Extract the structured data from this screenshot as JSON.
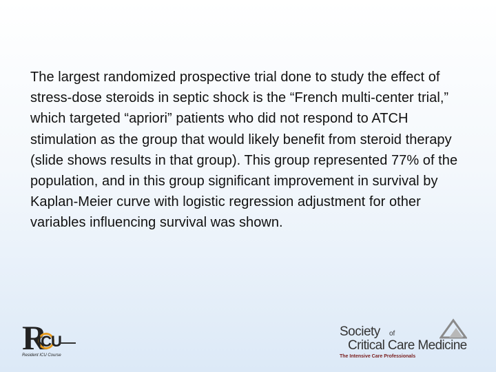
{
  "slide": {
    "body_text": "The largest randomized prospective trial done to study the effect of stress-dose steroids in septic shock is the “French multi-center trial,” which targeted “apriori” patients who did not respond to ATCH stimulation as the group that would likely benefit from steroid therapy (slide shows results in that group).  This group represented 77% of the population, and in this group significant improvement in survival by Kaplan-Meier curve with logistic regression adjustment for other variables influencing survival was shown."
  },
  "logos": {
    "ricu": {
      "letter": "R",
      "icu": "ICU",
      "tagline": "Resident ICU Course"
    },
    "sccm": {
      "society": "Society",
      "of": "of",
      "name": "Critical Care Medicine",
      "tagline": "The Intensive Care Professionals"
    }
  },
  "colors": {
    "ricu_accent": "#e59a1e",
    "sccm_tagline": "#7a2020",
    "text": "#111111"
  }
}
